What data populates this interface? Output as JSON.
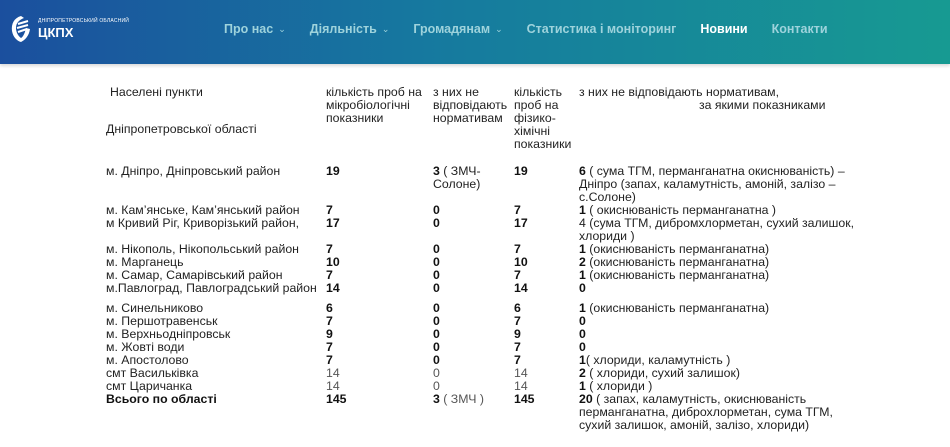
{
  "header": {
    "logo": {
      "small": "ДНІПРОПЕТРОВСЬКИЙ ОБЛАСНИЙ",
      "big": "ЦКПХ"
    },
    "nav": [
      {
        "label": "Про нас",
        "dropdown": true
      },
      {
        "label": "Діяльність",
        "dropdown": true
      },
      {
        "label": "Громадянам",
        "dropdown": true
      },
      {
        "label": "Статистика і моніторинг",
        "dropdown": false
      },
      {
        "label": "Новини",
        "dropdown": false,
        "active": true
      },
      {
        "label": "Контакти",
        "dropdown": false
      }
    ],
    "chevron": "⌄"
  },
  "table": {
    "headers": {
      "c1a": "Населені пункти",
      "c1b": "Дніпропетровської області",
      "c2": "кількість проб на мікробіологічні показники",
      "c3": "з них не відповідають нормативам",
      "c4": "кількість проб на фізико-хімічні показники",
      "c5a": "з них не відповідають нормативам,",
      "c5b": "за якими показниками"
    },
    "rows": [
      {
        "name": "м. Дніпро, Дніпровський район",
        "micro": "19",
        "micro_bad": "3",
        "micro_note": " ( ЗМЧ-Солоне)",
        "phys": "19",
        "phys_bad": "6",
        "phys_note": " ( сума ТГМ, перманганатна окиснюваність)  – Дніпро (запах, каламутність, амоній, залізо – с.Солоне)"
      },
      {
        "name": "м. Кам’янське,  Кам’янський район",
        "micro": "7",
        "micro_bad": "0",
        "micro_note": "",
        "phys": "7",
        "phys_bad": "1",
        "phys_note": " ( окиснюваність перманганатна )"
      },
      {
        "name": "м Кривий Ріг, Криворізький район,",
        "micro": "17",
        "micro_bad": "0",
        "micro_note": "",
        "phys": "17",
        "phys_bad": "",
        "phys_note": "4 (сума ТГМ, дибромхлорметан, сухий залишок, хлориди )"
      },
      {
        "name": "м. Нікополь, Нікопольський район",
        "micro": "7",
        "micro_bad": "0",
        "micro_note": "",
        "phys": "7",
        "phys_bad": "1",
        "phys_note": " (окиснюваність перманганатна)"
      },
      {
        "name": "м. Марганець",
        "micro": "10",
        "micro_bad": "0",
        "micro_note": "",
        "phys": "10",
        "phys_bad": "2",
        "phys_note": " (окиснюваність перманганатна)"
      },
      {
        "name": "м. Самар, Самарівський район",
        "micro": "7",
        "micro_bad": "0",
        "micro_note": "",
        "phys": "7",
        "phys_bad": "1",
        "phys_note": " (окиснюваність перманганатна)"
      },
      {
        "name": "м.Павлоград, Павлоградський район",
        "micro": "14",
        "micro_bad": "0",
        "micro_note": "",
        "phys": "14",
        "phys_bad": "0",
        "phys_note": ""
      },
      {
        "name": "м. Синельниково",
        "micro": "6",
        "micro_bad": "0",
        "micro_note": "",
        "phys": "6",
        "phys_bad": "1",
        "phys_note": "  (окиснюваність перманганатна)"
      },
      {
        "name": "м. Першотравенськ",
        "micro": "7",
        "micro_bad": "0",
        "micro_note": "",
        "phys": "7",
        "phys_bad": "0",
        "phys_note": ""
      },
      {
        "name": "м. Верхньодніпровськ",
        "micro": "9",
        "micro_bad": "0",
        "micro_note": "",
        "phys": "9",
        "phys_bad": "0",
        "phys_note": ""
      },
      {
        "name": "м. Жовті води",
        "micro": "7",
        "micro_bad": "0",
        "micro_note": "",
        "phys": "7",
        "phys_bad": "0",
        "phys_note": ""
      },
      {
        "name": " м. Апостолово",
        "micro": "7",
        "micro_bad": "0",
        "micro_note": "",
        "phys": "7",
        "phys_bad": "1",
        "phys_note": "( хлориди, каламутність )"
      },
      {
        "name": "смт Васильківка",
        "micro": "14",
        "micro_bad": "0",
        "micro_note": "",
        "phys": "14",
        "phys_bad": "2",
        "phys_note": " ( хлориди, сухий залишок)",
        "light": true
      },
      {
        "name": "смт Царичанка",
        "micro": "14",
        "micro_bad": "0",
        "micro_note": "",
        "phys": "14",
        "phys_bad": "1",
        "phys_note": " (  хлориди )",
        "light": true
      },
      {
        "name": "Всього по області",
        "micro": "145",
        "micro_bad": "3",
        "micro_note": " ( ЗМЧ )",
        "phys": "145",
        "phys_bad": "20",
        "phys_note": "  ( запах, каламутність, окиснюваність перманганатна,  диброхлорметан, сума ТГМ, сухий залишок, амоній, залізо, хлориди)",
        "total": true
      }
    ]
  }
}
